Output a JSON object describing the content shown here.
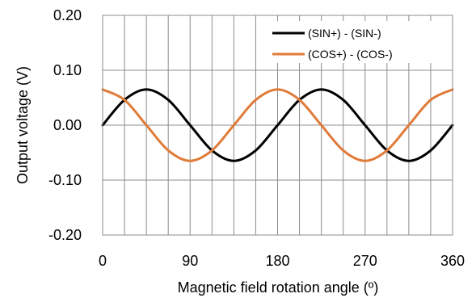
{
  "chart_data": {
    "type": "line",
    "xlabel": "Magnetic field rotation angle (º)",
    "ylabel": "Output voltage (V)",
    "xlim": [
      0,
      360
    ],
    "ylim": [
      -0.2,
      0.2
    ],
    "x_ticks": [
      0,
      90,
      180,
      270,
      360
    ],
    "x_tick_labels": [
      "0",
      "90",
      "180",
      "270",
      "360"
    ],
    "y_ticks": [
      0.2,
      0.1,
      0.0,
      -0.1,
      -0.2
    ],
    "y_tick_labels": [
      "0.20",
      "0.10",
      "0.00",
      "-0.10",
      "-0.20"
    ],
    "x_grid_every": 22.5,
    "grid": true,
    "legend_position": "top-right",
    "x": [
      0,
      22.5,
      45,
      67.5,
      90,
      112.5,
      135,
      157.5,
      180,
      202.5,
      225,
      247.5,
      270,
      292.5,
      315,
      337.5,
      360
    ],
    "series": [
      {
        "name": "(SIN+) - (SIN-)",
        "color": "#000000",
        "values": [
          0.0,
          0.046,
          0.065,
          0.046,
          0.0,
          -0.046,
          -0.065,
          -0.046,
          0.0,
          0.046,
          0.065,
          0.046,
          0.0,
          -0.046,
          -0.065,
          -0.046,
          0.0
        ]
      },
      {
        "name": "(COS+) - (COS-)",
        "color": "#E07B39",
        "values": [
          0.065,
          0.046,
          0.0,
          -0.046,
          -0.065,
          -0.046,
          0.0,
          0.046,
          0.065,
          0.046,
          0.0,
          -0.046,
          -0.065,
          -0.046,
          0.0,
          0.046,
          0.065
        ]
      }
    ]
  }
}
